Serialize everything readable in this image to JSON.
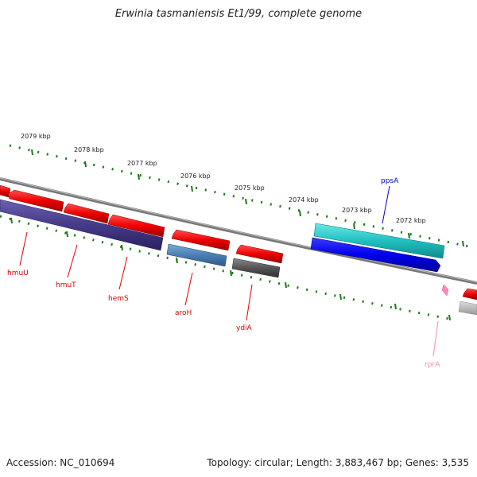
{
  "title": "Erwinia tasmaniensis Et1/99, complete genome",
  "accession_label": "Accession: NC_010694",
  "topology_label": "Topology: circular; Length: 3,883,467 bp; Genes: 3,535",
  "scale_ticks": [
    "2079 kbp",
    "2078 kbp",
    "2077 kbp",
    "2076 kbp",
    "2075 kbp",
    "2074 kbp",
    "2073 kbp",
    "2072 kbp"
  ],
  "genes": [
    {
      "name": "hmuU",
      "color": "#dd0000"
    },
    {
      "name": "hmuT",
      "color": "#dd0000"
    },
    {
      "name": "hemS",
      "color": "#dd0000"
    },
    {
      "name": "aroH",
      "color": "#dd0000"
    },
    {
      "name": "ydiA",
      "color": "#dd0000"
    },
    {
      "name": "ppsA",
      "color": "#0000cc"
    },
    {
      "name": "rprA",
      "color": "#ff88bb"
    }
  ],
  "colors": {
    "forward_cds": "#ff0000",
    "reverse_cds": "#4b3f8f",
    "backbone": "#888888",
    "tick": "#1a7a1a",
    "cyan_feature": "#20c0c0",
    "blue_feature": "#0000ee",
    "steel_feature": "#4a7fb5",
    "grey_feature": "#555555"
  }
}
